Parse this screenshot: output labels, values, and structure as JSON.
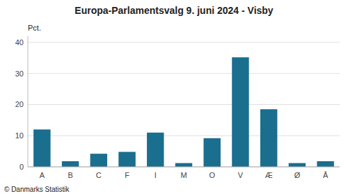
{
  "chart_data": {
    "type": "bar",
    "title": "Europa-Parlamentsvalg 9. juni 2024 - Visby",
    "ylabel": "Pct.",
    "footer": "© Danmarks Statistik",
    "categories": [
      "A",
      "B",
      "C",
      "F",
      "I",
      "M",
      "O",
      "V",
      "Æ",
      "Ø",
      "Å"
    ],
    "values": [
      12.0,
      1.8,
      4.2,
      4.8,
      11.0,
      1.2,
      9.2,
      35.2,
      18.5,
      1.2,
      1.8
    ],
    "color": "#1a6e8e",
    "ylim": [
      0,
      42
    ],
    "yticks": [
      0,
      10,
      20,
      30,
      40
    ],
    "grid": true
  }
}
